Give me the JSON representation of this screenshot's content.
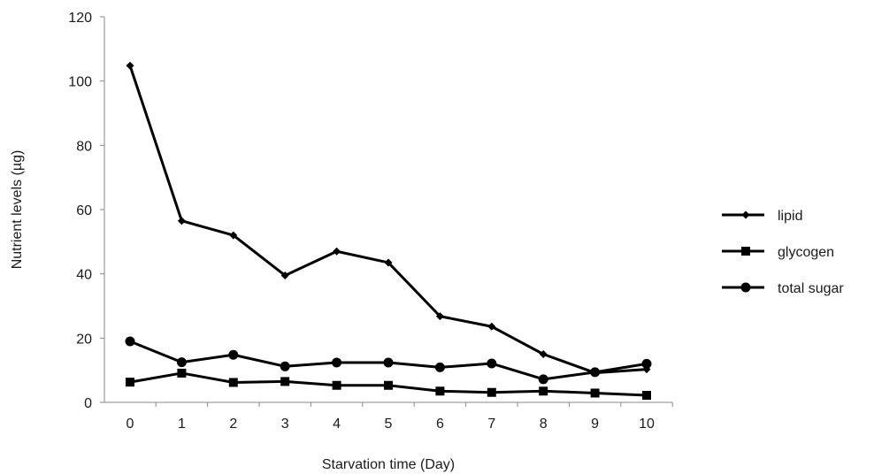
{
  "chart_data": {
    "type": "line",
    "xlabel": "Starvation time (Day)",
    "ylabel": "Nutrient levels (µg)",
    "x": [
      0,
      1,
      2,
      3,
      4,
      5,
      6,
      7,
      8,
      9,
      10
    ],
    "ylim": [
      0,
      120
    ],
    "yticks": [
      0,
      20,
      40,
      60,
      80,
      100,
      120
    ],
    "grid": false,
    "legend_position": "right",
    "series": [
      {
        "name": "lipid",
        "marker": "diamond",
        "color": "#000000",
        "values": [
          104.8,
          56.5,
          52.0,
          39.5,
          47.0,
          43.5,
          26.8,
          23.6,
          15.0,
          9.2,
          10.3
        ]
      },
      {
        "name": "glycogen",
        "marker": "square",
        "color": "#000000",
        "values": [
          6.3,
          9.1,
          6.2,
          6.5,
          5.3,
          5.3,
          3.5,
          3.1,
          3.5,
          2.9,
          2.2
        ]
      },
      {
        "name": "total sugar",
        "marker": "circle",
        "color": "#000000",
        "values": [
          19.0,
          12.5,
          14.8,
          11.2,
          12.4,
          12.4,
          10.9,
          12.1,
          7.2,
          9.4,
          12.0
        ]
      }
    ]
  }
}
